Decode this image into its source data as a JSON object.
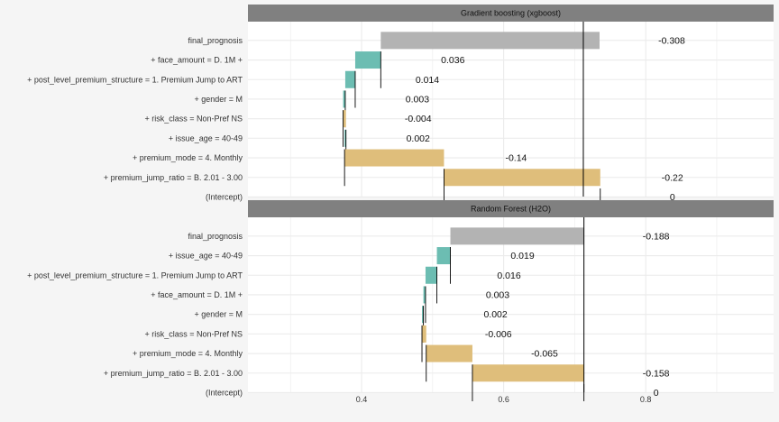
{
  "chart_data": {
    "type": "bar",
    "subtype": "break-down waterfall",
    "xlabel": "",
    "ylabel": "",
    "xlim": [
      0.24,
      0.98
    ],
    "x_ticks": [
      "0.4",
      "0.6",
      "0.8"
    ],
    "x_tick_values": [
      0.4,
      0.6,
      0.8
    ],
    "grid": true,
    "legend": "none",
    "colors": {
      "prediction": "#b3b3b3",
      "positive": "#6cbdb2",
      "negative": "#dfbe7b",
      "strip": "#808080",
      "panel": "#ffffff",
      "gridline": "#ebebeb",
      "reference_line": "#000000"
    },
    "panels": [
      {
        "title": "Gradient boosting (xgboost)",
        "intercept": 0.735,
        "prediction": 0.427,
        "rows": [
          {
            "label": "final_prognosis",
            "start": 0.735,
            "end": 0.427,
            "value_label": "-0.308",
            "kind": "prediction"
          },
          {
            "label": "+ face_amount = D.  1M +",
            "start": 0.391,
            "end": 0.427,
            "value_label": "0.036",
            "kind": "positive"
          },
          {
            "label": "+ post_level_premium_structure = 1. Premium Jump to ART",
            "start": 0.377,
            "end": 0.391,
            "value_label": "0.014",
            "kind": "positive"
          },
          {
            "label": "+ gender = M",
            "start": 0.374,
            "end": 0.377,
            "value_label": "0.003",
            "kind": "positive"
          },
          {
            "label": "+ risk_class = Non-Pref NS",
            "start": 0.378,
            "end": 0.374,
            "value_label": "-0.004",
            "kind": "negative"
          },
          {
            "label": "+ issue_age = 40-49",
            "start": 0.376,
            "end": 0.378,
            "value_label": "0.002",
            "kind": "positive"
          },
          {
            "label": "+ premium_mode = 4. Monthly",
            "start": 0.516,
            "end": 0.376,
            "value_label": "-0.14",
            "kind": "negative"
          },
          {
            "label": "+ premium_jump_ratio = B.  2.01 - 3.00",
            "start": 0.736,
            "end": 0.516,
            "value_label": "-0.22",
            "kind": "negative"
          },
          {
            "label": "(Intercept)",
            "start": 0.736,
            "end": 0.736,
            "value_label": "0",
            "kind": "intercept"
          }
        ]
      },
      {
        "title": "Random Forest (H2O)",
        "intercept": 0.713,
        "prediction": 0.525,
        "rows": [
          {
            "label": "final_prognosis",
            "start": 0.713,
            "end": 0.525,
            "value_label": "-0.188",
            "kind": "prediction"
          },
          {
            "label": "+ issue_age = 40-49",
            "start": 0.506,
            "end": 0.525,
            "value_label": "0.019",
            "kind": "positive"
          },
          {
            "label": "+ post_level_premium_structure = 1. Premium Jump to ART",
            "start": 0.49,
            "end": 0.506,
            "value_label": "0.016",
            "kind": "positive"
          },
          {
            "label": "+ face_amount = D.  1M +",
            "start": 0.487,
            "end": 0.49,
            "value_label": "0.003",
            "kind": "positive"
          },
          {
            "label": "+ gender = M",
            "start": 0.485,
            "end": 0.487,
            "value_label": "0.002",
            "kind": "positive"
          },
          {
            "label": "+ risk_class = Non-Pref NS",
            "start": 0.491,
            "end": 0.485,
            "value_label": "-0.006",
            "kind": "negative"
          },
          {
            "label": "+ premium_mode = 4. Monthly",
            "start": 0.556,
            "end": 0.491,
            "value_label": "-0.065",
            "kind": "negative"
          },
          {
            "label": "+ premium_jump_ratio = B.  2.01 - 3.00",
            "start": 0.713,
            "end": 0.556,
            "value_label": "-0.158",
            "kind": "negative"
          },
          {
            "label": "(Intercept)",
            "start": 0.713,
            "end": 0.713,
            "value_label": "0",
            "kind": "intercept"
          }
        ]
      }
    ]
  }
}
